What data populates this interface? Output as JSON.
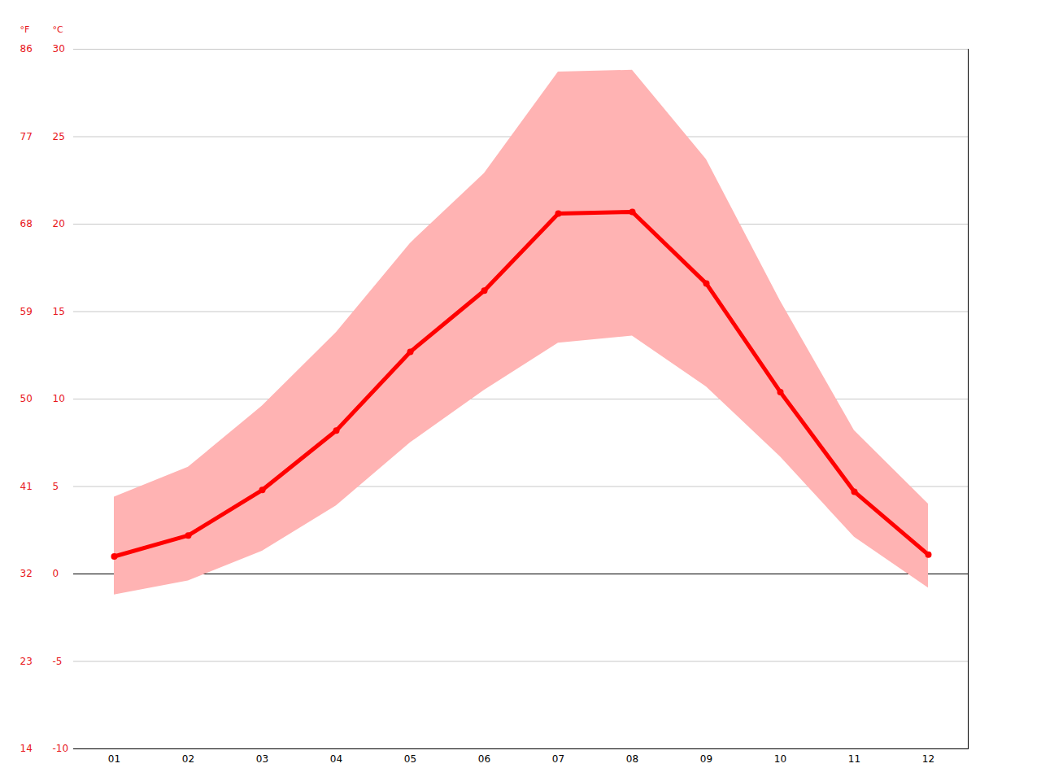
{
  "chart_data": {
    "type": "line",
    "categories": [
      "01",
      "02",
      "03",
      "04",
      "05",
      "06",
      "07",
      "08",
      "09",
      "10",
      "11",
      "12"
    ],
    "values": [
      1.0,
      2.2,
      4.8,
      8.2,
      12.7,
      16.2,
      20.6,
      20.7,
      16.6,
      10.4,
      4.7,
      1.1
    ],
    "band_low": [
      -1.2,
      -0.4,
      1.3,
      3.9,
      7.5,
      10.5,
      13.2,
      13.6,
      10.7,
      6.7,
      2.1,
      -0.8
    ],
    "band_high": [
      4.4,
      6.1,
      9.6,
      13.8,
      18.9,
      22.9,
      28.7,
      28.8,
      23.7,
      15.6,
      8.2,
      4.0
    ],
    "color": "#ff0000",
    "marker": "circle",
    "y_label": "°C",
    "y2_label": "°F",
    "ylim": [
      -10,
      30
    ],
    "yticks": [
      -10,
      -5,
      0,
      5,
      10,
      15,
      20,
      25,
      30
    ],
    "y2lim": [
      14,
      86
    ],
    "y2ticks": [
      14,
      23,
      32,
      41,
      50,
      59,
      68,
      77,
      86
    ],
    "grid": true
  }
}
